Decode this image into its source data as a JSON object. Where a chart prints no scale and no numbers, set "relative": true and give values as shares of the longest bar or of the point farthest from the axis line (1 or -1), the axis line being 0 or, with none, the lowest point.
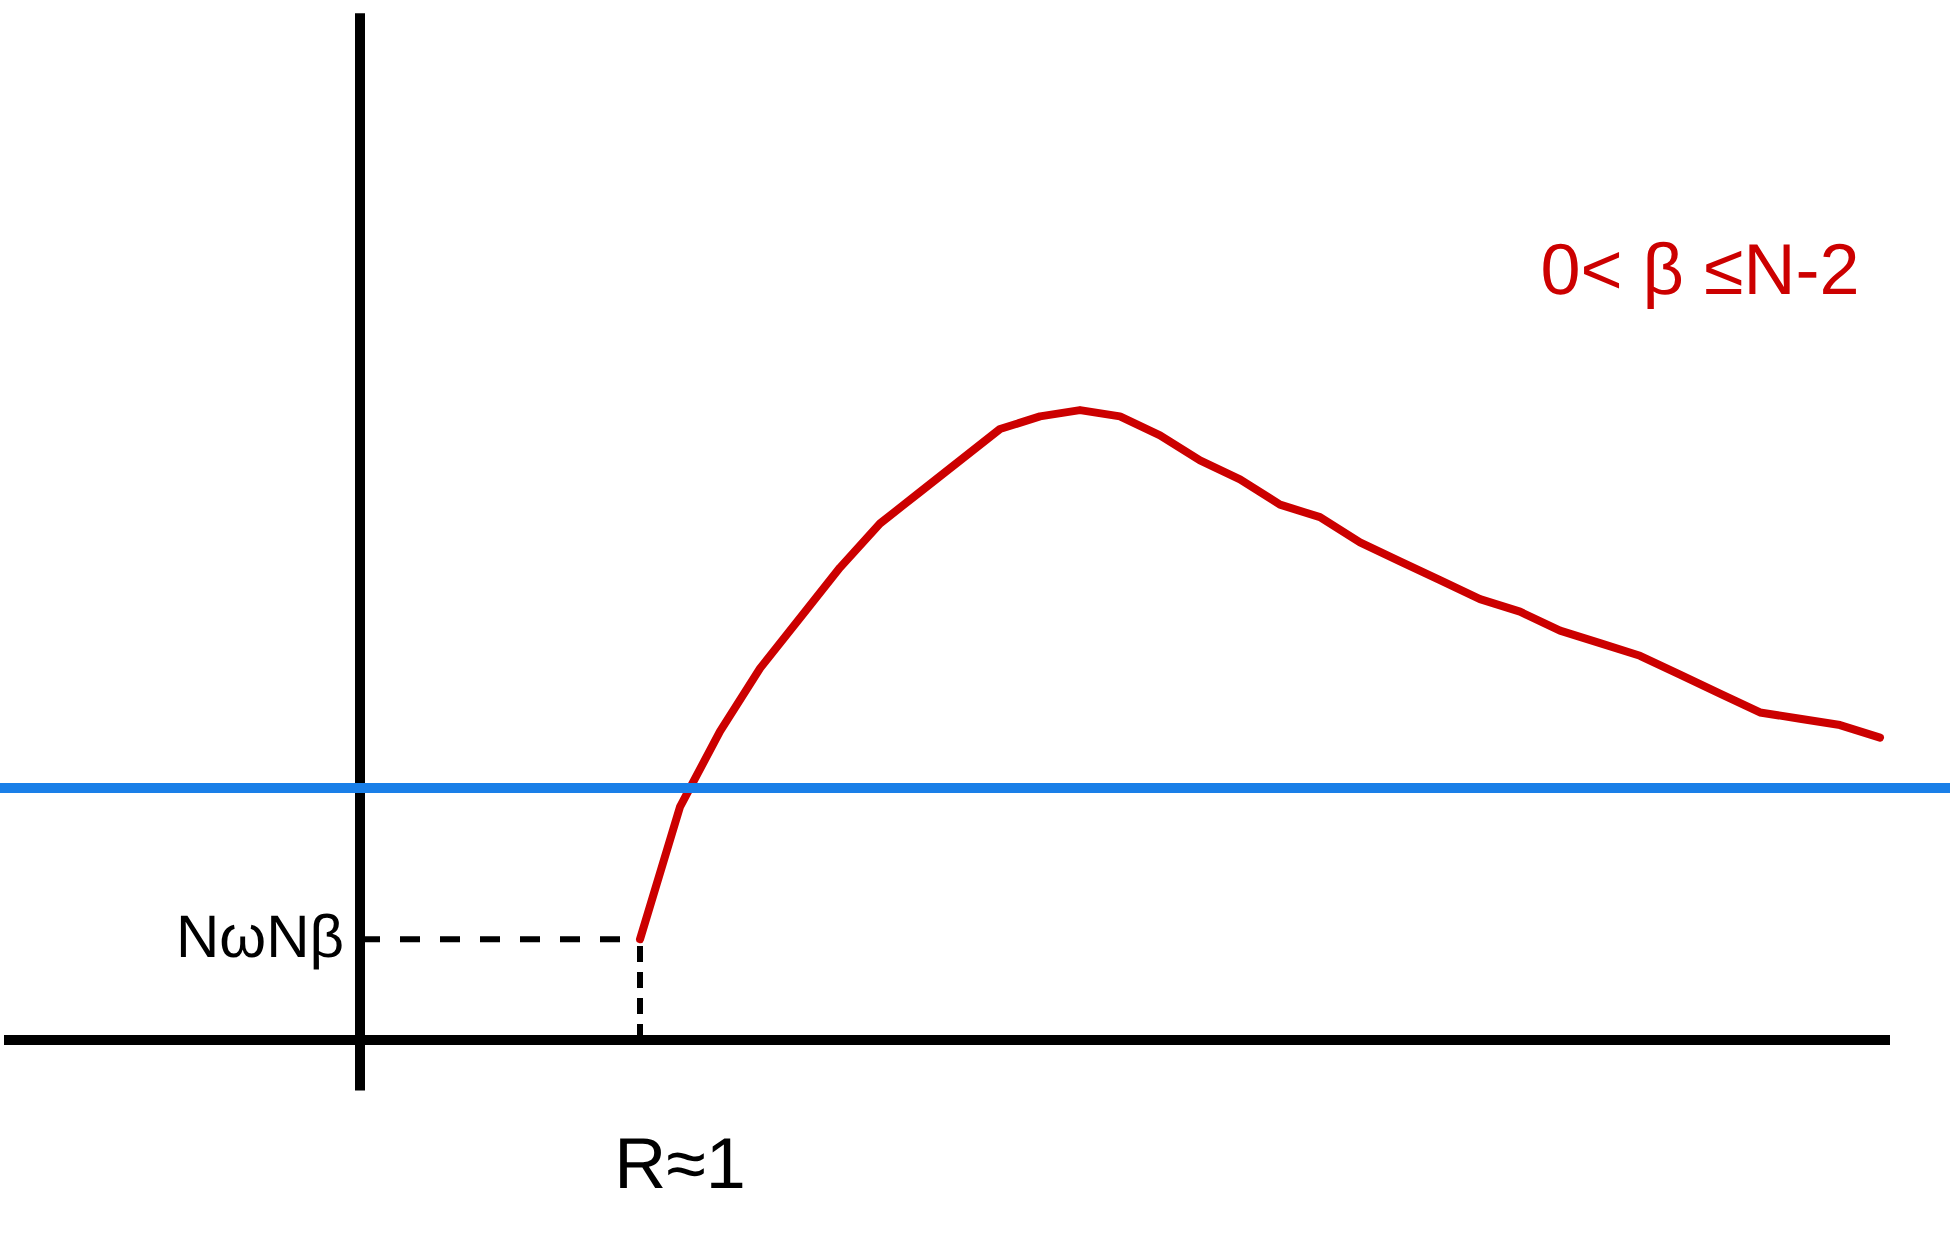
{
  "chart_data": {
    "type": "line",
    "relative": true,
    "grid": false,
    "marker": "none",
    "line_style": "solid",
    "categories": [
      null,
      null,
      null,
      null,
      null,
      null,
      null,
      null,
      null,
      null,
      null,
      null,
      null,
      null,
      null,
      null,
      null,
      null,
      null,
      null,
      null,
      null,
      null,
      null,
      null,
      null,
      null,
      null,
      null,
      null,
      null,
      null,
      null,
      null,
      null,
      null,
      null,
      null,
      null
    ],
    "series": [
      {
        "color": "#cc0000",
        "values": [
          null,
          null,
          null,
          null,
          null,
          null,
          null,
          0.16,
          0.37,
          0.49,
          0.59,
          0.67,
          0.75,
          0.82,
          0.87,
          0.92,
          0.97,
          0.99,
          1,
          0.99,
          0.96,
          0.92,
          0.89,
          0.85,
          0.83,
          0.79,
          0.76,
          0.73,
          0.7,
          0.68,
          0.65,
          0.63,
          0.61,
          0.58,
          0.55,
          0.52,
          0.51,
          0.5,
          0.48
        ]
      }
    ],
    "ref_lines": [
      {
        "axis": "y",
        "value": 0.4,
        "color": "#1a7fe8",
        "line_style": "solid"
      },
      {
        "axis": "y",
        "value": 0.16,
        "label": "NωNβ",
        "color": "#000000",
        "line_style": "dashed"
      }
    ],
    "annotations": [
      "0< β ≤N-2",
      "R≈1"
    ]
  }
}
